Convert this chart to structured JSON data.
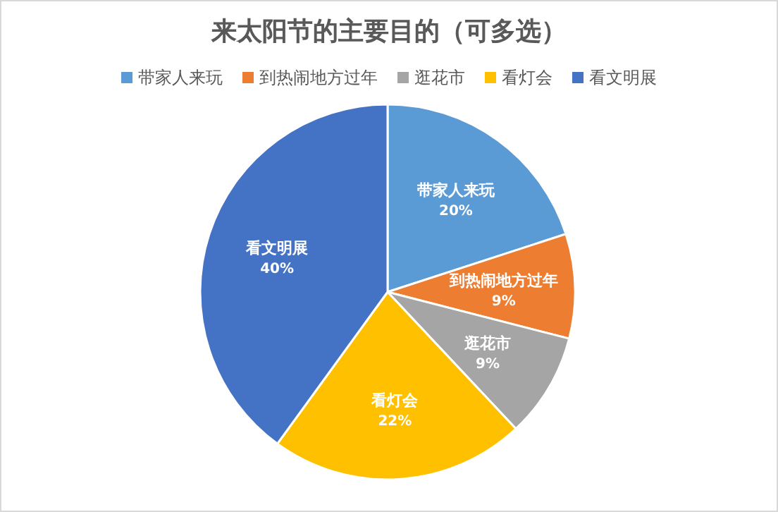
{
  "chart_data": {
    "type": "pie",
    "title": "来太阳节的主要目的（可多选）",
    "categories": [
      "带家人来玩",
      "到热闹地方过年",
      "逛花市",
      "看灯会",
      "看文明展"
    ],
    "values": [
      20,
      9,
      9,
      22,
      40
    ],
    "colors": [
      "#5b9bd5",
      "#ed7d31",
      "#a5a5a5",
      "#ffc000",
      "#4472c4"
    ],
    "value_labels": [
      "20%",
      "9%",
      "9%",
      "22%",
      "40%"
    ],
    "legend": "top"
  }
}
